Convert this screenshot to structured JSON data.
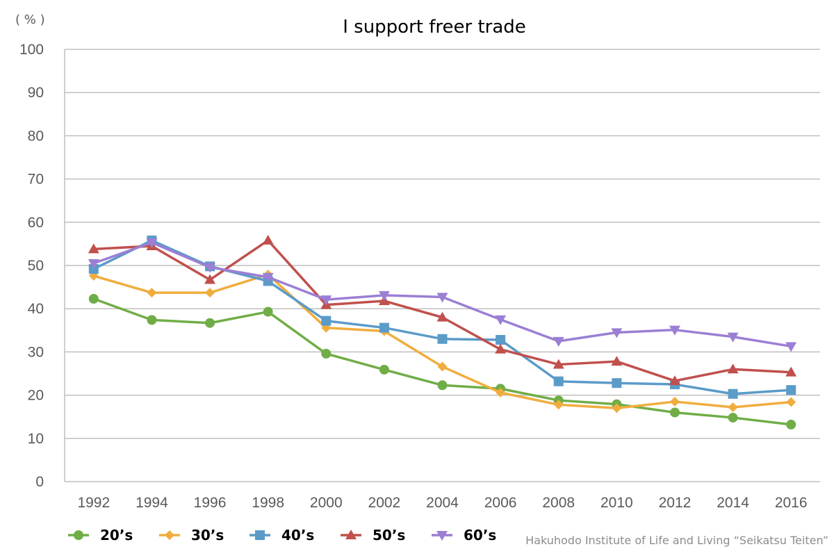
{
  "unit_label": "( % )",
  "source_credit": "Hakuhodo Institute of Life and Living “Seikatsu Teiten”",
  "chart_data": {
    "type": "line",
    "title": "I support freer trade",
    "xlabel": "",
    "ylabel": "",
    "ylim": [
      0,
      100
    ],
    "yticks": [
      0,
      10,
      20,
      30,
      40,
      50,
      60,
      70,
      80,
      90,
      100
    ],
    "grid": true,
    "legend_position": "bottom-left",
    "categories": [
      "1992",
      "1994",
      "1996",
      "1998",
      "2000",
      "2002",
      "2004",
      "2006",
      "2008",
      "2010",
      "2012",
      "2014",
      "2016"
    ],
    "series": [
      {
        "name": "20’s",
        "marker": "circle",
        "color": "#70ad47",
        "values": [
          42.3,
          37.4,
          36.7,
          39.3,
          29.6,
          25.9,
          22.3,
          21.5,
          18.8,
          17.9,
          16.0,
          14.8,
          13.2
        ]
      },
      {
        "name": "30’s",
        "marker": "diamond",
        "color": "#f0ad3e",
        "values": [
          47.6,
          43.7,
          43.7,
          47.9,
          35.6,
          34.8,
          26.6,
          20.6,
          17.8,
          17.0,
          18.5,
          17.2,
          18.4
        ]
      },
      {
        "name": "40’s",
        "marker": "square",
        "color": "#5b9bc8",
        "values": [
          49.2,
          55.8,
          49.8,
          46.4,
          37.2,
          35.6,
          33.0,
          32.8,
          23.2,
          22.8,
          22.5,
          20.3,
          21.2
        ]
      },
      {
        "name": "50’s",
        "marker": "triangle-up",
        "color": "#c0504d",
        "values": [
          53.8,
          54.5,
          46.7,
          55.8,
          40.9,
          41.8,
          38.0,
          30.6,
          27.1,
          27.8,
          23.3,
          26.0,
          25.3
        ]
      },
      {
        "name": "60’s",
        "marker": "triangle-down",
        "color": "#9b7fd4",
        "values": [
          50.5,
          55.3,
          49.6,
          47.3,
          42.1,
          43.1,
          42.7,
          37.5,
          32.5,
          34.5,
          35.1,
          33.5,
          31.3
        ]
      }
    ]
  }
}
